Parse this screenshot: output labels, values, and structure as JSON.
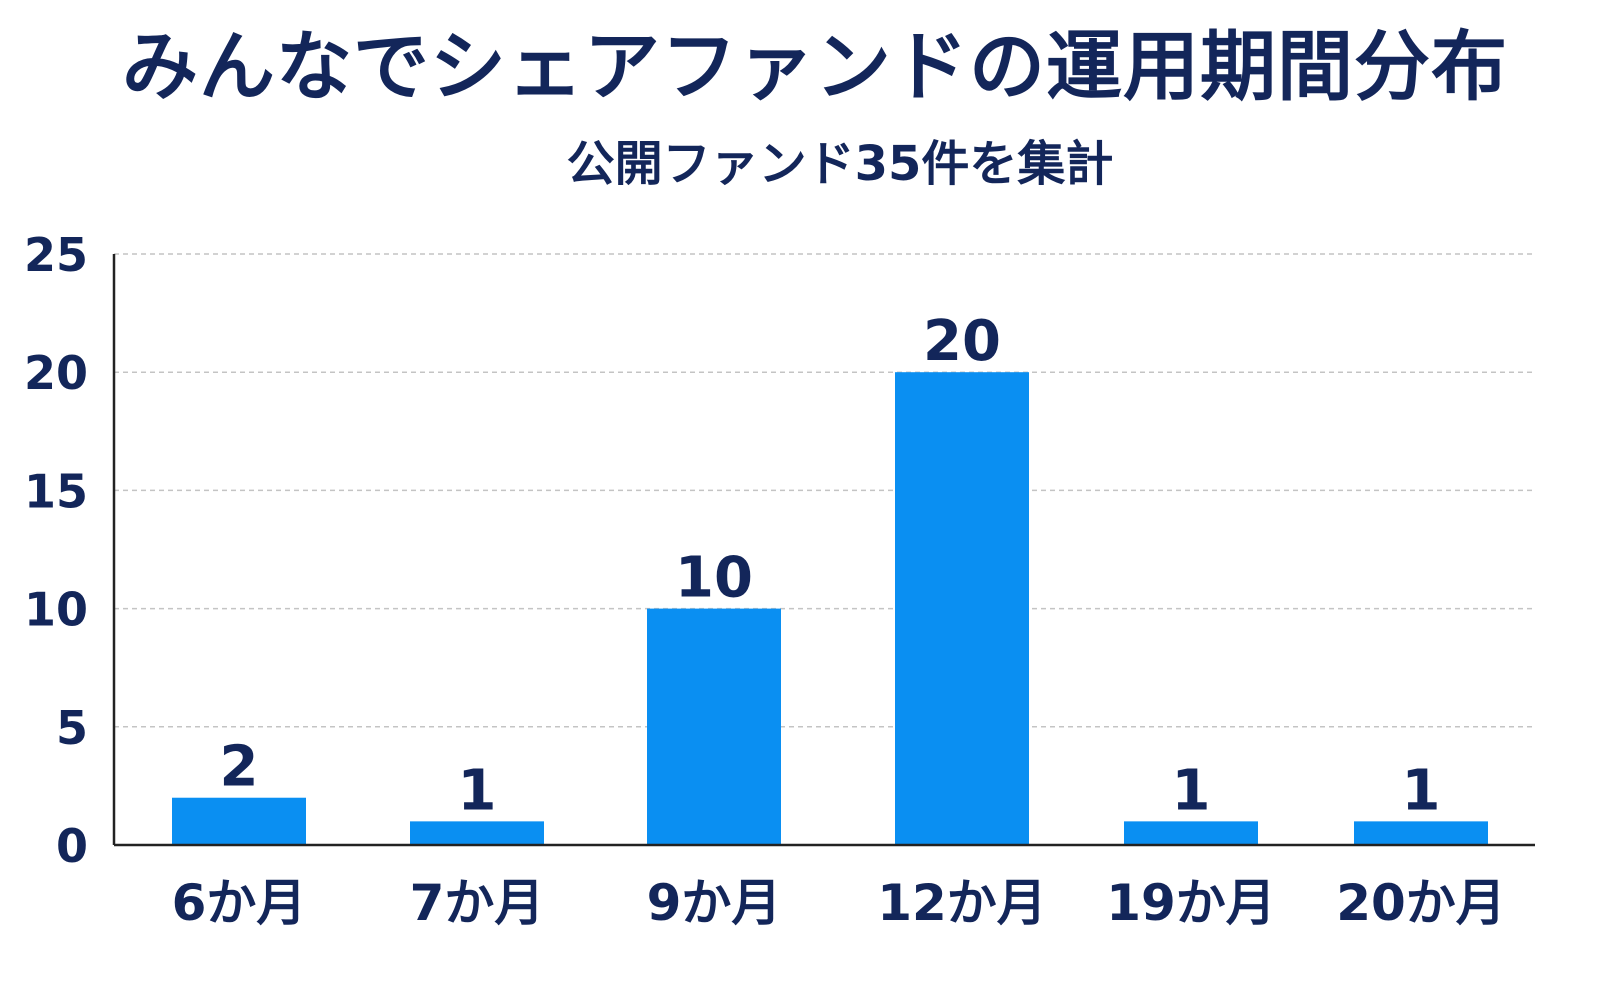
{
  "title": "みんなでシェアファンドの運用期間分布",
  "subtitle": "公開ファンド35件を集計",
  "chart_data": {
    "type": "bar",
    "categories": [
      "6か月",
      "7か月",
      "9か月",
      "12か月",
      "19か月",
      "20か月"
    ],
    "values": [
      2,
      1,
      10,
      20,
      1,
      1
    ],
    "data_labels": [
      "2",
      "1",
      "10",
      "20",
      "1",
      "1"
    ],
    "y_ticks": [
      "0",
      "5",
      "10",
      "15",
      "20",
      "25"
    ],
    "ylim": [
      0,
      25
    ],
    "grid": true,
    "grid_style": "dashed",
    "legend": "none",
    "colors": {
      "bar": "#0a8ff2",
      "text": "#13265a",
      "axis": "#222222",
      "grid": "#c4c4c4"
    }
  }
}
